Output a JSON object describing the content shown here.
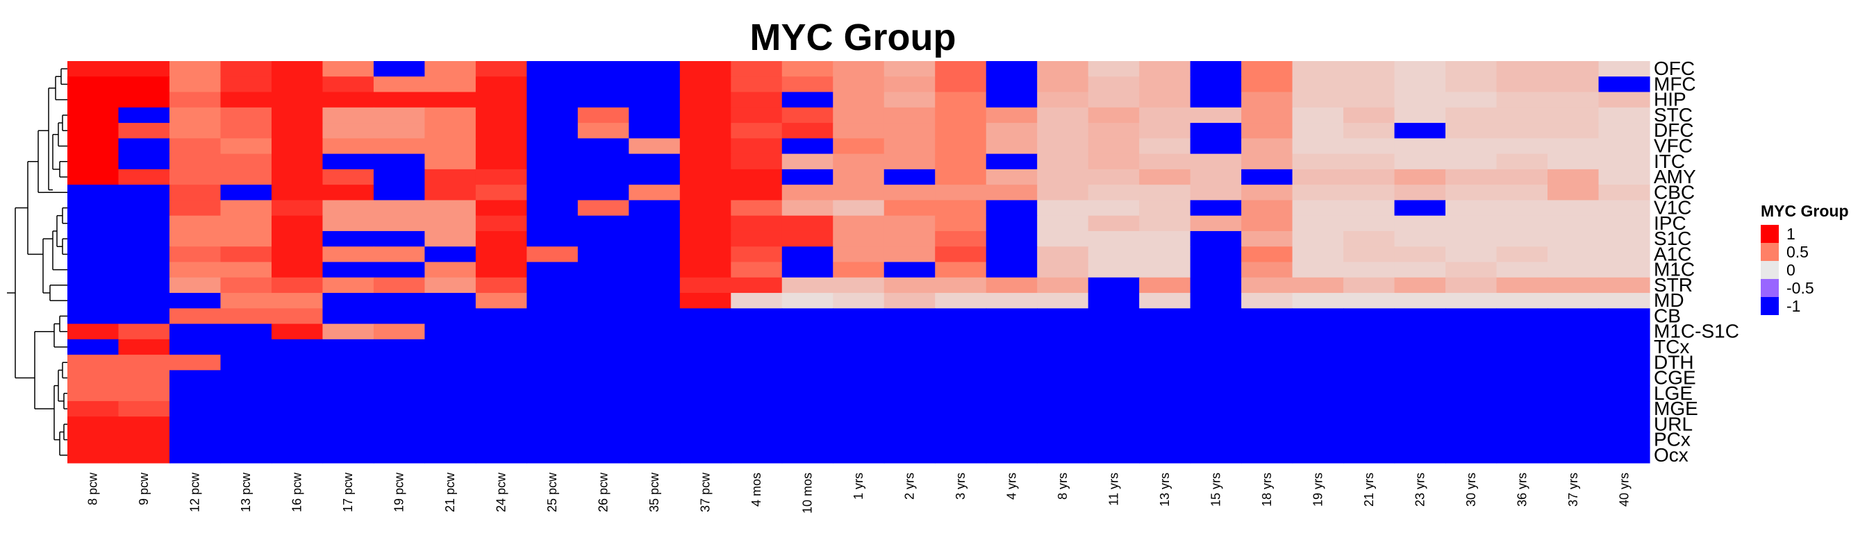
{
  "chart_data": {
    "type": "heatmap",
    "title": "MYC Group",
    "legend": {
      "title": "MYC Group",
      "placement": "right",
      "entries": [
        {
          "label": "1",
          "value": 1,
          "color": "#ff0000"
        },
        {
          "label": "0.5",
          "value": 0.5,
          "color": "#ff8066"
        },
        {
          "label": "0",
          "value": 0,
          "color": "#e8e8e8"
        },
        {
          "label": "-0.5",
          "value": -0.5,
          "color": "#9966ff"
        },
        {
          "label": "-1",
          "value": -1,
          "color": "#0000ff"
        }
      ]
    },
    "columns": [
      "8 pcw",
      "9 pcw",
      "12 pcw",
      "13 pcw",
      "16 pcw",
      "17 pcw",
      "19 pcw",
      "21 pcw",
      "24 pcw",
      "25 pcw",
      "26 pcw",
      "35 pcw",
      "37 pcw",
      "4 mos",
      "10 mos",
      "1 yrs",
      "2 yrs",
      "3 yrs",
      "4 yrs",
      "8 yrs",
      "11 yrs",
      "13 yrs",
      "15 yrs",
      "18 yrs",
      "19 yrs",
      "21 yrs",
      "23 yrs",
      "30 yrs",
      "36 yrs",
      "37 yrs",
      "40 yrs"
    ],
    "rows": [
      "OFC",
      "MFC",
      "HIP",
      "STC",
      "DFC",
      "VFC",
      "ITC",
      "AMY",
      "CBC",
      "V1C",
      "IPC",
      "S1C",
      "A1C",
      "M1C",
      "STR",
      "MD",
      "CB",
      "M1C-S1C",
      "TCx",
      "DTH",
      "CGE",
      "LGE",
      "MGE",
      "URL",
      "PCx",
      "Ocx"
    ],
    "values": [
      [
        0.9,
        0.9,
        0.5,
        0.8,
        0.9,
        0.5,
        -1,
        0.5,
        0.8,
        -1,
        -1,
        -1,
        0.9,
        0.7,
        0.5,
        0.4,
        0.3,
        0.6,
        -1,
        0.3,
        0.15,
        0.25,
        -1,
        0.5,
        0.15,
        0.15,
        0.1,
        0.15,
        0.2,
        0.2,
        0.1
      ],
      [
        1,
        1,
        0.5,
        0.8,
        0.9,
        0.8,
        0.5,
        0.5,
        0.9,
        -1,
        -1,
        -1,
        0.9,
        0.7,
        0.6,
        0.4,
        0.35,
        0.6,
        -1,
        0.3,
        0.2,
        0.25,
        -1,
        0.5,
        0.15,
        0.15,
        0.1,
        0.15,
        0.2,
        0.2,
        -1
      ],
      [
        1,
        1,
        0.6,
        0.9,
        0.9,
        0.9,
        0.9,
        0.9,
        0.9,
        -1,
        -1,
        -1,
        0.9,
        0.8,
        -1,
        0.4,
        0.3,
        0.5,
        -1,
        0.25,
        0.2,
        0.25,
        -1,
        0.4,
        0.15,
        0.15,
        0.1,
        0.1,
        0.15,
        0.15,
        0.2
      ],
      [
        1,
        -1,
        0.5,
        0.6,
        0.9,
        0.4,
        0.4,
        0.5,
        0.9,
        -1,
        0.6,
        -1,
        0.9,
        0.8,
        0.7,
        0.4,
        0.4,
        0.5,
        0.4,
        0.2,
        0.3,
        0.2,
        0.2,
        0.4,
        0.1,
        0.2,
        0.1,
        0.15,
        0.15,
        0.15,
        0.1
      ],
      [
        1,
        0.7,
        0.5,
        0.6,
        0.9,
        0.4,
        0.4,
        0.5,
        0.9,
        -1,
        0.5,
        -1,
        0.9,
        0.7,
        0.8,
        0.4,
        0.4,
        0.5,
        0.3,
        0.2,
        0.25,
        0.2,
        -1,
        0.4,
        0.1,
        0.15,
        -1,
        0.15,
        0.15,
        0.15,
        0.1
      ],
      [
        1,
        -1,
        0.6,
        0.5,
        0.9,
        0.5,
        0.5,
        0.5,
        0.9,
        -1,
        -1,
        0.4,
        0.9,
        0.8,
        -1,
        0.5,
        0.4,
        0.5,
        0.3,
        0.2,
        0.25,
        0.15,
        -1,
        0.3,
        0.1,
        0.1,
        0.1,
        0.1,
        0.1,
        0.1,
        0.1
      ],
      [
        1,
        -1,
        0.6,
        0.6,
        0.9,
        -1,
        -1,
        0.5,
        0.9,
        -1,
        -1,
        -1,
        0.9,
        0.8,
        0.3,
        0.4,
        0.4,
        0.5,
        -1,
        0.2,
        0.25,
        0.2,
        0.2,
        0.3,
        0.15,
        0.15,
        0.1,
        0.1,
        0.15,
        0.1,
        0.1
      ],
      [
        1,
        0.8,
        0.6,
        0.6,
        0.9,
        0.7,
        -1,
        0.8,
        0.8,
        -1,
        -1,
        -1,
        0.9,
        0.9,
        -1,
        0.4,
        -1,
        0.5,
        0.3,
        0.2,
        0.2,
        0.3,
        0.2,
        -1,
        0.2,
        0.2,
        0.3,
        0.2,
        0.2,
        0.3,
        0.1
      ],
      [
        -1,
        -1,
        0.7,
        -1,
        0.9,
        0.9,
        -1,
        0.8,
        0.7,
        -1,
        -1,
        0.5,
        0.9,
        0.9,
        0.4,
        0.4,
        0.4,
        0.4,
        0.4,
        0.2,
        0.15,
        0.15,
        0.2,
        0.3,
        0.15,
        0.15,
        0.2,
        0.15,
        0.15,
        0.3,
        0.15
      ],
      [
        -1,
        -1,
        0.7,
        0.5,
        0.8,
        0.4,
        0.4,
        0.4,
        0.9,
        -1,
        0.6,
        -1,
        0.9,
        0.6,
        0.3,
        0.2,
        0.5,
        0.5,
        -1,
        0.1,
        0.1,
        0.15,
        -1,
        0.4,
        0.1,
        0.1,
        -1,
        0.1,
        0.1,
        0.1,
        0.1
      ],
      [
        -1,
        -1,
        0.5,
        0.5,
        0.9,
        0.4,
        0.4,
        0.4,
        0.8,
        -1,
        -1,
        -1,
        0.9,
        0.8,
        0.8,
        0.4,
        0.4,
        0.5,
        -1,
        0.1,
        0.2,
        0.15,
        0.3,
        0.4,
        0.1,
        0.1,
        0.1,
        0.1,
        0.1,
        0.1,
        0.1
      ],
      [
        -1,
        -1,
        0.5,
        0.5,
        0.9,
        -1,
        -1,
        0.4,
        0.9,
        -1,
        -1,
        -1,
        0.9,
        0.8,
        0.8,
        0.4,
        0.4,
        0.6,
        -1,
        0.1,
        0.1,
        0.1,
        -1,
        0.3,
        0.1,
        0.15,
        0.1,
        0.1,
        0.1,
        0.1,
        0.1
      ],
      [
        -1,
        -1,
        0.6,
        0.7,
        0.9,
        0.5,
        0.5,
        -1,
        0.9,
        0.6,
        -1,
        -1,
        0.9,
        0.7,
        -1,
        0.4,
        0.4,
        0.7,
        -1,
        0.2,
        0.1,
        0.1,
        -1,
        0.5,
        0.1,
        0.15,
        0.15,
        0.1,
        0.15,
        0.1,
        0.1
      ],
      [
        -1,
        -1,
        0.5,
        0.5,
        0.9,
        -1,
        -1,
        0.5,
        0.9,
        -1,
        -1,
        -1,
        0.9,
        0.6,
        -1,
        0.5,
        -1,
        0.5,
        -1,
        0.2,
        0.1,
        0.1,
        -1,
        0.4,
        0.1,
        0.1,
        0.1,
        0.15,
        0.1,
        0.1,
        0.1
      ],
      [
        -1,
        -1,
        0.4,
        0.6,
        0.7,
        0.5,
        0.6,
        0.4,
        0.7,
        -1,
        -1,
        -1,
        0.8,
        0.8,
        0.2,
        0.2,
        0.3,
        0.3,
        0.4,
        0.3,
        -1,
        0.4,
        -1,
        0.3,
        0.3,
        0.2,
        0.3,
        0.2,
        0.3,
        0.3,
        0.3
      ],
      [
        -1,
        -1,
        -1,
        0.5,
        0.5,
        -1,
        -1,
        -1,
        0.5,
        -1,
        -1,
        -1,
        0.9,
        0.1,
        0.05,
        0.1,
        0.2,
        0.1,
        0.1,
        0.1,
        -1,
        0.1,
        -1,
        0.1,
        0.05,
        0.05,
        0.05,
        0.05,
        0.05,
        0.05,
        0.05
      ],
      [
        -1,
        -1,
        0.6,
        0.6,
        0.6,
        -1,
        -1,
        -1,
        -1,
        -1,
        -1,
        -1,
        -1,
        -1,
        -1,
        -1,
        -1,
        -1,
        -1,
        -1,
        -1,
        -1,
        -1,
        -1,
        -1,
        -1,
        -1,
        -1,
        -1,
        -1,
        -1
      ],
      [
        0.9,
        0.7,
        -1,
        -1,
        0.9,
        0.4,
        0.5,
        -1,
        -1,
        -1,
        -1,
        -1,
        -1,
        -1,
        -1,
        -1,
        -1,
        -1,
        -1,
        -1,
        -1,
        -1,
        -1,
        -1,
        -1,
        -1,
        -1,
        -1,
        -1,
        -1,
        -1
      ],
      [
        -1,
        0.9,
        -1,
        -1,
        -1,
        -1,
        -1,
        -1,
        -1,
        -1,
        -1,
        -1,
        -1,
        -1,
        -1,
        -1,
        -1,
        -1,
        -1,
        -1,
        -1,
        -1,
        -1,
        -1,
        -1,
        -1,
        -1,
        -1,
        -1,
        -1,
        -1
      ],
      [
        0.6,
        0.6,
        0.6,
        -1,
        -1,
        -1,
        -1,
        -1,
        -1,
        -1,
        -1,
        -1,
        -1,
        -1,
        -1,
        -1,
        -1,
        -1,
        -1,
        -1,
        -1,
        -1,
        -1,
        -1,
        -1,
        -1,
        -1,
        -1,
        -1,
        -1,
        -1
      ],
      [
        0.6,
        0.6,
        -1,
        -1,
        -1,
        -1,
        -1,
        -1,
        -1,
        -1,
        -1,
        -1,
        -1,
        -1,
        -1,
        -1,
        -1,
        -1,
        -1,
        -1,
        -1,
        -1,
        -1,
        -1,
        -1,
        -1,
        -1,
        -1,
        -1,
        -1,
        -1
      ],
      [
        0.6,
        0.6,
        -1,
        -1,
        -1,
        -1,
        -1,
        -1,
        -1,
        -1,
        -1,
        -1,
        -1,
        -1,
        -1,
        -1,
        -1,
        -1,
        -1,
        -1,
        -1,
        -1,
        -1,
        -1,
        -1,
        -1,
        -1,
        -1,
        -1,
        -1,
        -1
      ],
      [
        0.8,
        0.7,
        -1,
        -1,
        -1,
        -1,
        -1,
        -1,
        -1,
        -1,
        -1,
        -1,
        -1,
        -1,
        -1,
        -1,
        -1,
        -1,
        -1,
        -1,
        -1,
        -1,
        -1,
        -1,
        -1,
        -1,
        -1,
        -1,
        -1,
        -1,
        -1
      ],
      [
        0.9,
        0.9,
        -1,
        -1,
        -1,
        -1,
        -1,
        -1,
        -1,
        -1,
        -1,
        -1,
        -1,
        -1,
        -1,
        -1,
        -1,
        -1,
        -1,
        -1,
        -1,
        -1,
        -1,
        -1,
        -1,
        -1,
        -1,
        -1,
        -1,
        -1,
        -1
      ],
      [
        0.9,
        0.9,
        -1,
        -1,
        -1,
        -1,
        -1,
        -1,
        -1,
        -1,
        -1,
        -1,
        -1,
        -1,
        -1,
        -1,
        -1,
        -1,
        -1,
        -1,
        -1,
        -1,
        -1,
        -1,
        -1,
        -1,
        -1,
        -1,
        -1,
        -1,
        -1
      ],
      [
        0.9,
        0.9,
        -1,
        -1,
        -1,
        -1,
        -1,
        -1,
        -1,
        -1,
        -1,
        -1,
        -1,
        -1,
        -1,
        -1,
        -1,
        -1,
        -1,
        -1,
        -1,
        -1,
        -1,
        -1,
        -1,
        -1,
        -1,
        -1,
        -1,
        -1,
        -1
      ]
    ],
    "dendrogram": "rows"
  }
}
